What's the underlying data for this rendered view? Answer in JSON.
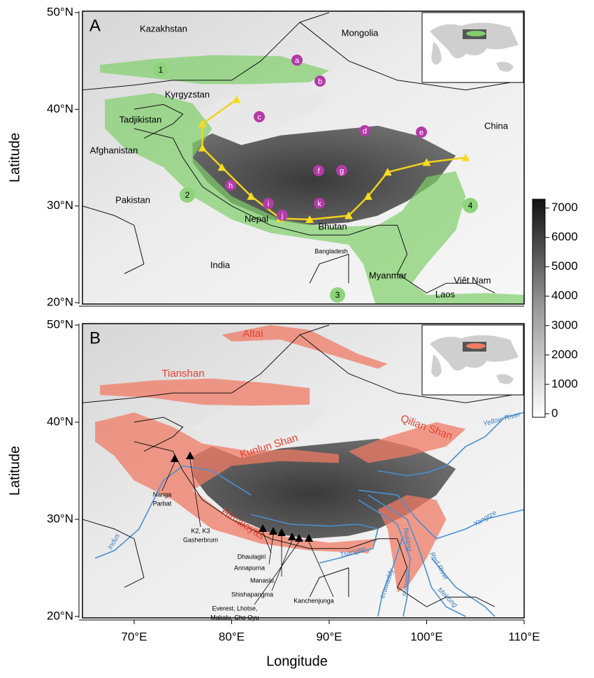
{
  "axes": {
    "x_title": "Longitude",
    "y_title": "Latitude",
    "xlim": [
      64.7,
      110
    ],
    "ylim": [
      20,
      50
    ],
    "xticks": [
      {
        "value": 70,
        "label": "70°E"
      },
      {
        "value": 80,
        "label": "80°E"
      },
      {
        "value": 90,
        "label": "90°E"
      },
      {
        "value": 100,
        "label": "100°E"
      },
      {
        "value": 110,
        "label": "110°E"
      }
    ],
    "yticks": [
      {
        "value": 20,
        "label": "20°N"
      },
      {
        "value": 30,
        "label": "30°N"
      },
      {
        "value": 40,
        "label": "40°N"
      },
      {
        "value": 50,
        "label": "50°N"
      }
    ]
  },
  "colorbar": {
    "lim": [
      -120,
      7300
    ],
    "ticks": [
      0,
      1000,
      2000,
      3000,
      4000,
      5000,
      6000,
      7000
    ]
  },
  "panels": [
    {
      "letter": "A",
      "countries": [
        "Kazakhstan",
        "Mongolia",
        "Kyrgyzstan",
        "Tadjikistan",
        "Afghanistan",
        "Pakistan",
        "China",
        "Nepal",
        "Bhutan",
        "Bangladesh",
        "India",
        "Myanmar",
        "Laos",
        "Viêt Nam"
      ],
      "sites": [
        "a",
        "b",
        "c",
        "d",
        "e",
        "f",
        "g",
        "h",
        "i",
        "j",
        "k"
      ],
      "regions": [
        "1",
        "2",
        "3",
        "4"
      ]
    },
    {
      "letter": "B",
      "ranges": [
        "Altai",
        "Tianshan",
        "Kunlun Shan",
        "Qilian Shan",
        "Himalayas"
      ],
      "rivers": [
        "Yellow River",
        "Yangtze",
        "Indus",
        "Tsangpo",
        "Irrawaddy",
        "Salween",
        "Nujiang",
        "Red River",
        "Mekong"
      ],
      "peaks": [
        [
          "Nanga",
          "Parbat"
        ],
        [
          "K2, K3",
          "Gasherbrum"
        ],
        [
          "Dhaulagiri"
        ],
        [
          "Annapurna"
        ],
        [
          "Manaslu"
        ],
        [
          "Shishapangma"
        ],
        [
          "Everest, Lhotse,",
          "Makalu, Cho Oyu"
        ],
        [
          "Kanchenjunga"
        ]
      ]
    }
  ]
}
